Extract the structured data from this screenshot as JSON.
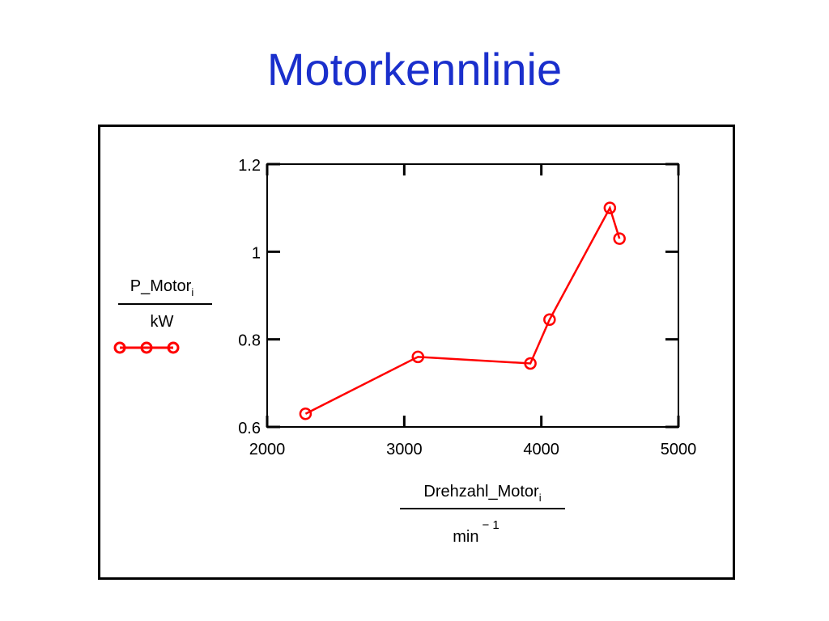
{
  "slide": {
    "title": "Motorkennlinie"
  },
  "colors": {
    "title": "#1a2fcc",
    "series": "#ff0000",
    "axis": "#000000"
  },
  "chart_data": {
    "type": "line",
    "title": "",
    "ylabel": {
      "numerator": "P_Motor",
      "numerator_sub": "i",
      "denominator": "kW"
    },
    "xlabel": {
      "numerator": "Drehzahl_Motor",
      "numerator_sub": "i",
      "denominator": "min",
      "denominator_sup": "− 1"
    },
    "xlim": [
      2000,
      5000
    ],
    "ylim": [
      0.6,
      1.2
    ],
    "xticks": [
      "2000",
      "3000",
      "4000",
      "5000"
    ],
    "yticks": [
      "0.6",
      "0.8",
      "1",
      "1.2"
    ],
    "series": [
      {
        "color": "#ff0000",
        "marker": "circle",
        "x": [
          2280,
          3100,
          3920,
          4060,
          4500,
          4570
        ],
        "y": [
          0.63,
          0.76,
          0.745,
          0.845,
          1.1,
          1.03
        ]
      }
    ]
  }
}
